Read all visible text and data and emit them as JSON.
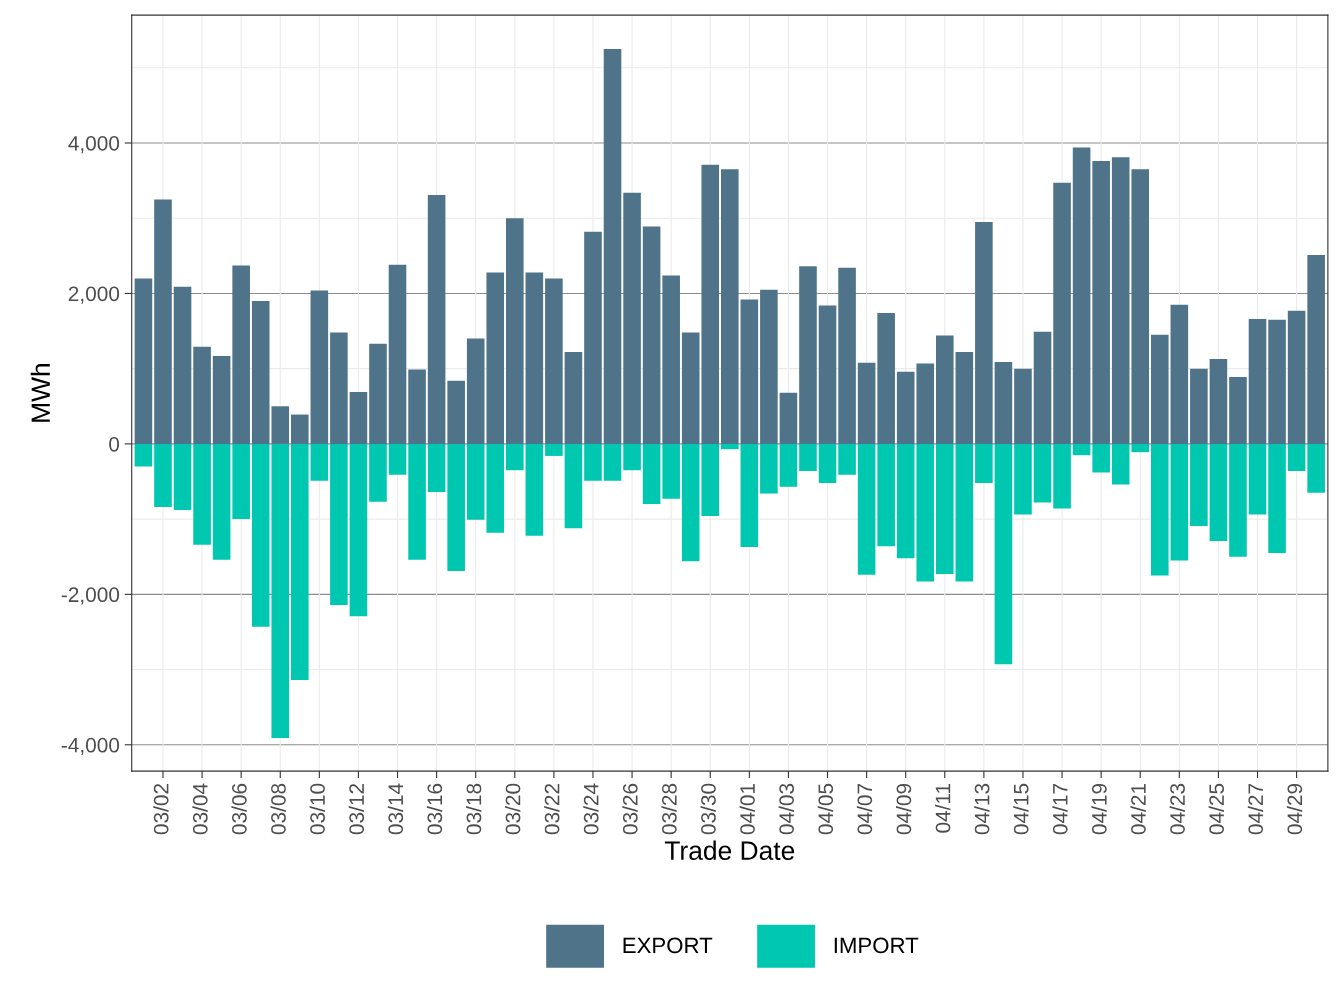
{
  "chart_data": {
    "type": "bar",
    "stacked": true,
    "xlabel": "Trade Date",
    "ylabel": "MWh",
    "categories": [
      null,
      "03/02",
      null,
      "03/04",
      null,
      "03/06",
      null,
      "03/08",
      null,
      "03/10",
      null,
      "03/12",
      null,
      "03/14",
      null,
      "03/16",
      null,
      "03/18",
      null,
      "03/20",
      null,
      "03/22",
      null,
      "03/24",
      null,
      "03/26",
      null,
      "03/28",
      null,
      "03/30",
      null,
      "04/01",
      null,
      "04/03",
      null,
      "04/05",
      null,
      "04/07",
      null,
      "04/09",
      null,
      "04/11",
      null,
      "04/13",
      null,
      "04/15",
      null,
      "04/17",
      null,
      "04/19",
      null,
      "04/21",
      null,
      "04/23",
      null,
      "04/25",
      null,
      "04/27",
      null,
      "04/29",
      null
    ],
    "series": [
      {
        "name": "EXPORT",
        "color": "#4f7389",
        "values": [
          2200,
          3250,
          2090,
          1290,
          1170,
          2370,
          1900,
          500,
          390,
          2040,
          1480,
          690,
          1330,
          2380,
          990,
          3310,
          840,
          1400,
          2280,
          3000,
          2280,
          2200,
          1220,
          2820,
          5250,
          3340,
          2890,
          2240,
          1480,
          3710,
          3650,
          1920,
          2050,
          680,
          2360,
          1840,
          2340,
          1080,
          1740,
          960,
          1070,
          1440,
          1220,
          2950,
          1090,
          1000,
          1490,
          3470,
          3940,
          3760,
          3810,
          3650,
          1450,
          1850,
          1000,
          1130,
          890,
          1660,
          1650,
          1770,
          2510
        ]
      },
      {
        "name": "IMPORT",
        "color": "#00c7b0",
        "values": [
          -300,
          -840,
          -880,
          -1340,
          -1540,
          -1000,
          -2430,
          -3910,
          -3140,
          -490,
          -2140,
          -2290,
          -770,
          -410,
          -1540,
          -640,
          -1690,
          -1010,
          -1180,
          -350,
          -1220,
          -160,
          -1120,
          -490,
          -490,
          -350,
          -800,
          -730,
          -1560,
          -960,
          -70,
          -1370,
          -660,
          -570,
          -360,
          -520,
          -410,
          -1740,
          -1360,
          -1520,
          -1830,
          -1730,
          -1830,
          -520,
          -2930,
          -940,
          -780,
          -860,
          -150,
          -380,
          -540,
          -110,
          -1750,
          -1550,
          -1090,
          -1290,
          -1500,
          -940,
          -1450,
          -360,
          -650
        ]
      }
    ],
    "ylim": [
      -4350,
      5700
    ],
    "yticks": [
      {
        "value": -4000,
        "label": "-4,000"
      },
      {
        "value": -2000,
        "label": "-2,000"
      },
      0,
      {
        "value": 2000,
        "label": "2,000"
      },
      {
        "value": 4000,
        "label": "4,000"
      }
    ],
    "grid": true,
    "legend": "bottom"
  }
}
